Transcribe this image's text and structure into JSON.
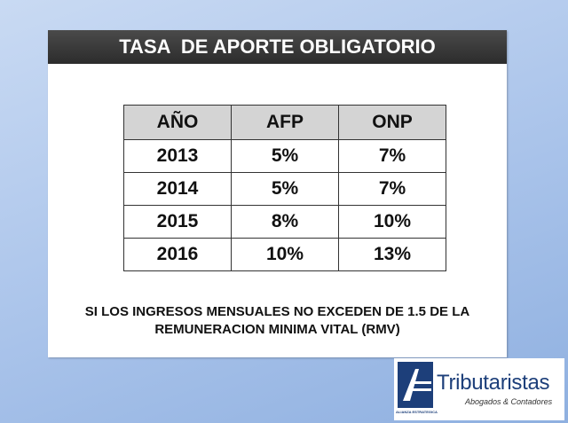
{
  "header": {
    "title": "TASA  DE APORTE OBLIGATORIO"
  },
  "table": {
    "header": [
      "AÑO",
      "AFP",
      "ONP"
    ],
    "rows": [
      [
        "2013",
        "5%",
        "7%"
      ],
      [
        "2014",
        "5%",
        "7%"
      ],
      [
        "2015",
        "8%",
        "10%"
      ],
      [
        "2016",
        "10%",
        "13%"
      ]
    ]
  },
  "note": [
    "SI LOS INGRESOS MENSUALES NO EXCEDEN DE 1.5 DE LA",
    "REMUNERACION MINIMA VITAL (RMV)"
  ],
  "logo": {
    "name": "Tributaristas",
    "tagline": "Abogados & Contadores",
    "mark_text": "ALIANZA ESTRATEGICA"
  }
}
